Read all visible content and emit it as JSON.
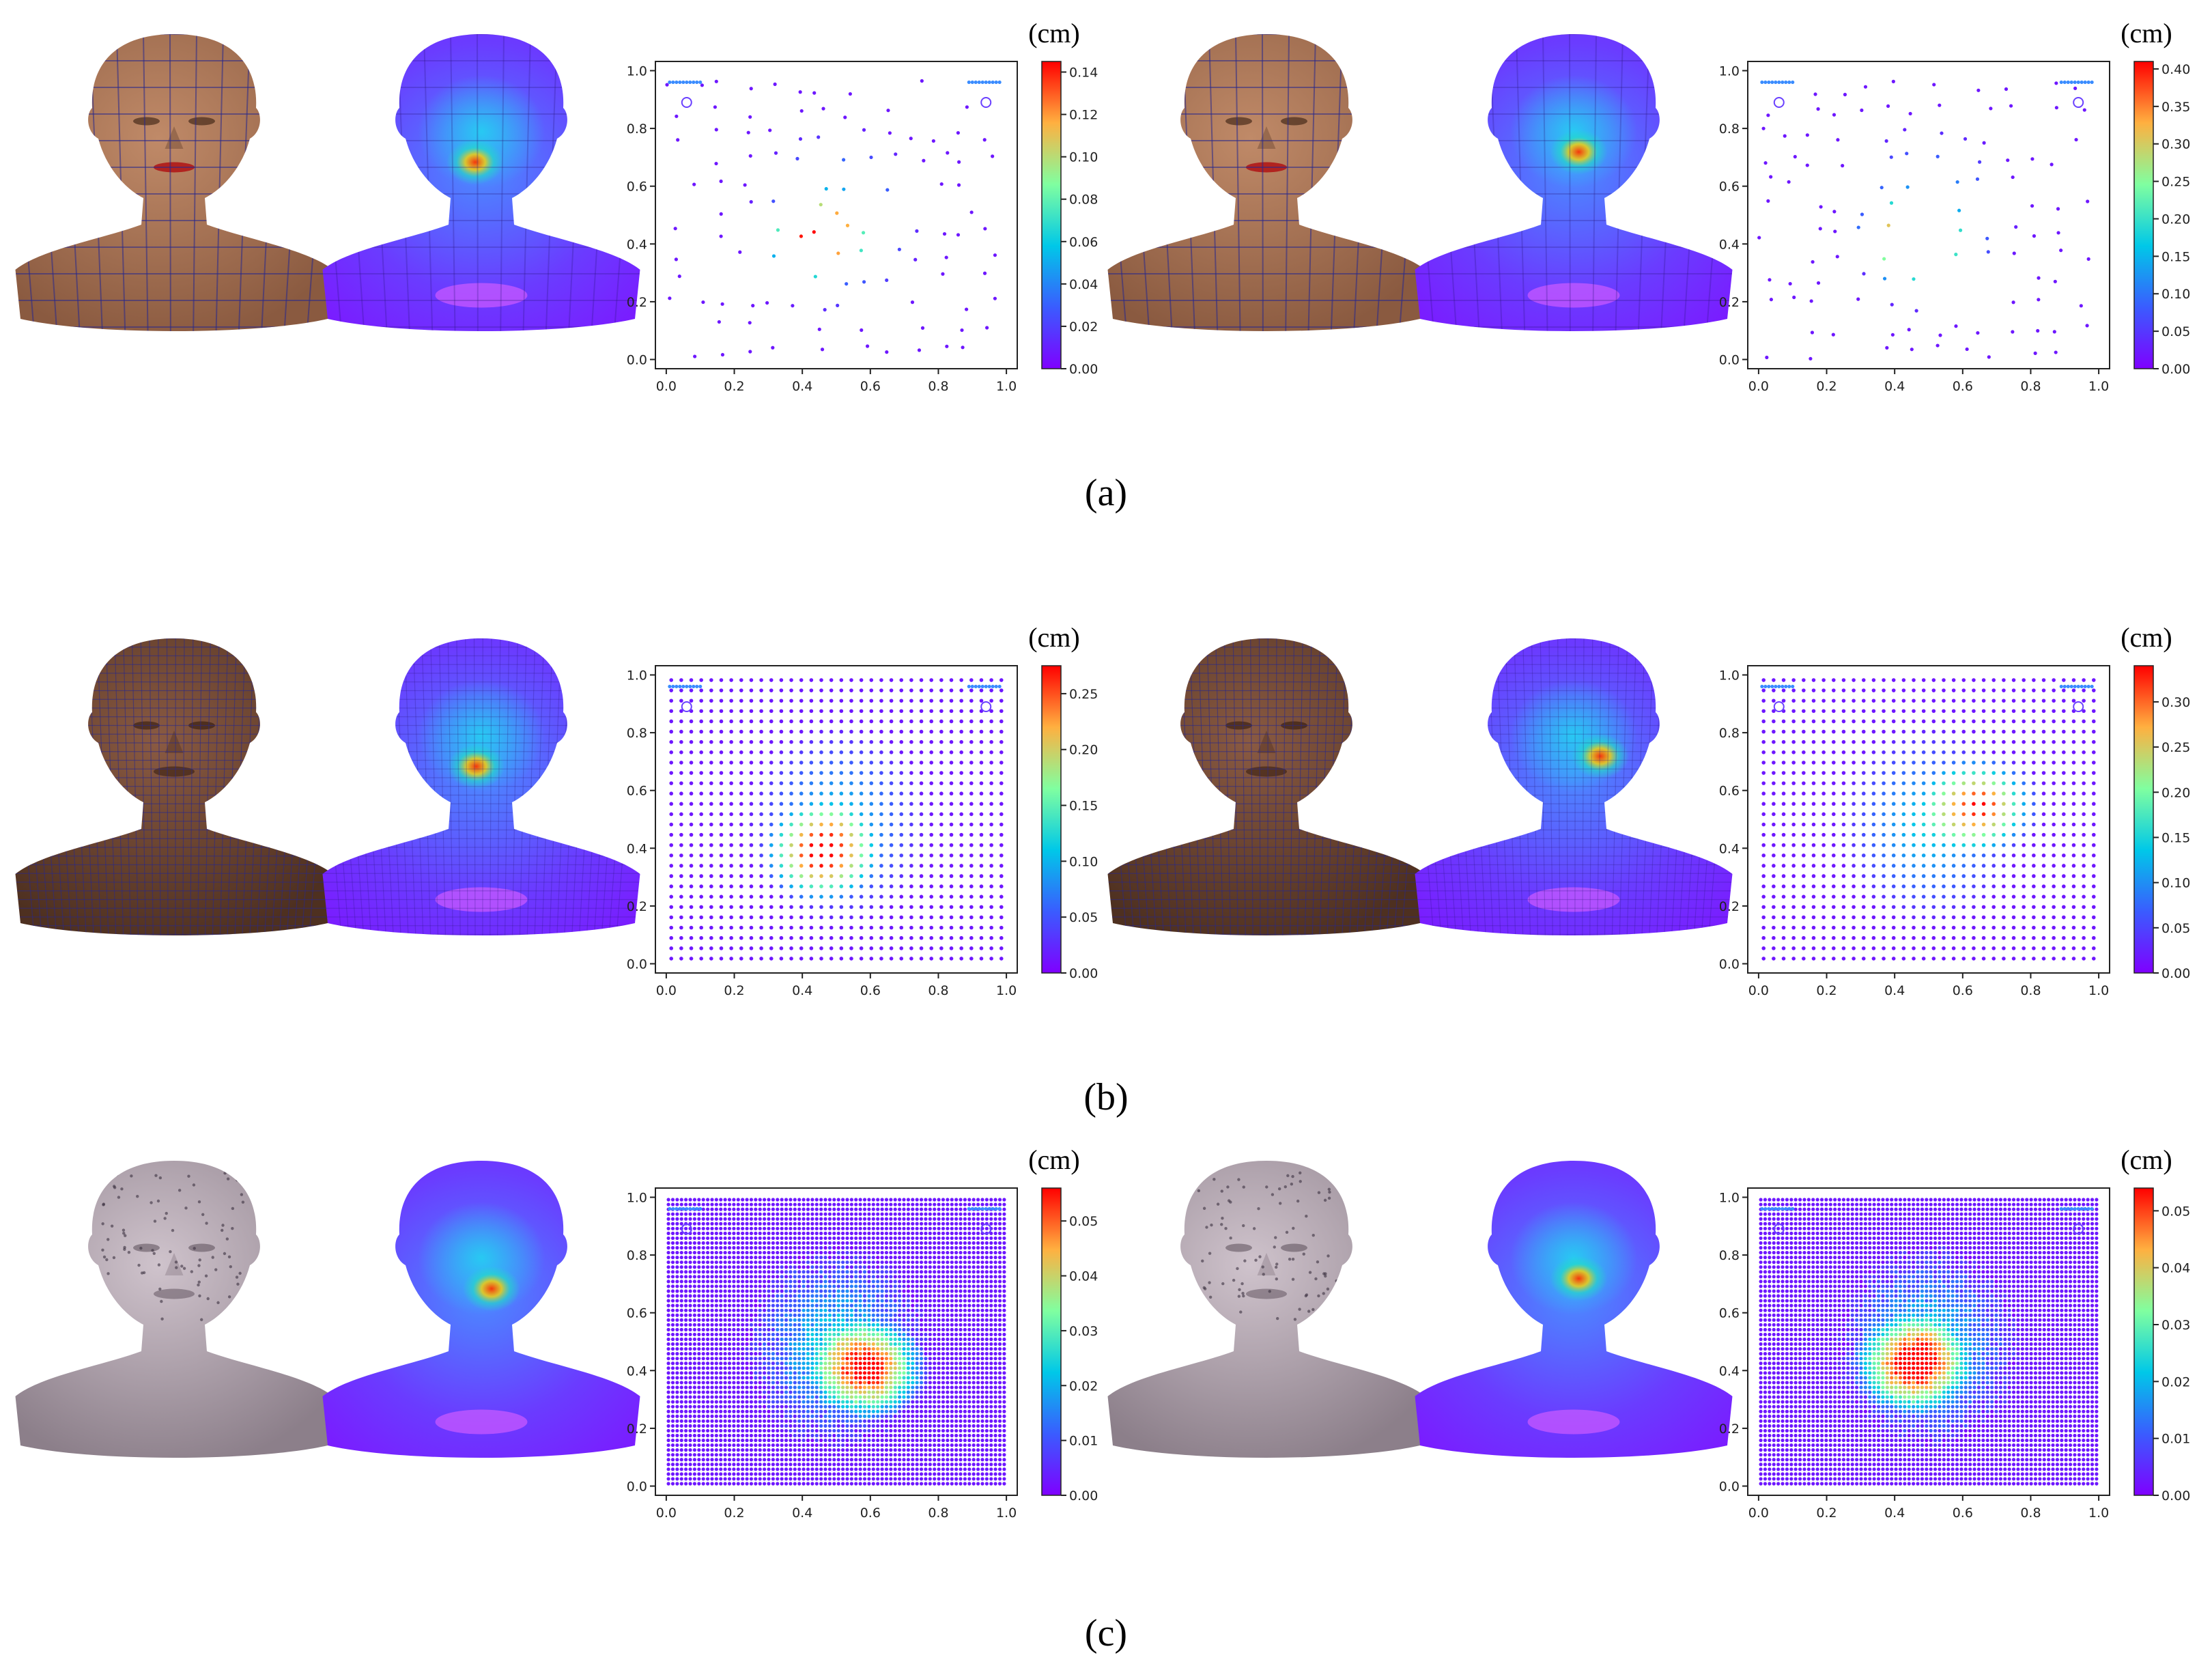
{
  "figure": {
    "rows": [
      {
        "caption": "(a)",
        "mesh_style": "low",
        "panels": [
          {
            "unit": "(cm)",
            "cbar_ticks": [
              "0.00",
              "0.02",
              "0.04",
              "0.06",
              "0.08",
              "0.10",
              "0.12",
              "0.14"
            ],
            "cbar_max": 0.145,
            "hotspot": [
              0.44,
              0.42
            ]
          },
          {
            "unit": "(cm)",
            "cbar_ticks": [
              "0.00",
              "0.05",
              "0.10",
              "0.15",
              "0.20",
              "0.25",
              "0.30",
              "0.35",
              "0.40"
            ],
            "cbar_max": 0.41,
            "hotspot": [
              0.45,
              0.41
            ]
          }
        ]
      },
      {
        "caption": "(b)",
        "mesh_style": "mid",
        "panels": [
          {
            "unit": "(cm)",
            "cbar_ticks": [
              "0.00",
              "0.05",
              "0.10",
              "0.15",
              "0.20",
              "0.25"
            ],
            "cbar_max": 0.275,
            "hotspot": [
              0.45,
              0.38
            ]
          },
          {
            "unit": "(cm)",
            "cbar_ticks": [
              "0.00",
              "0.05",
              "0.10",
              "0.15",
              "0.20",
              "0.25",
              "0.30"
            ],
            "cbar_max": 0.34,
            "hotspot": [
              0.66,
              0.55
            ]
          }
        ]
      },
      {
        "caption": "(c)",
        "mesh_style": "dense",
        "panels": [
          {
            "unit": "(cm)",
            "cbar_ticks": [
              "0.00",
              "0.01",
              "0.02",
              "0.03",
              "0.04",
              "0.05"
            ],
            "cbar_max": 0.056,
            "hotspot": [
              0.6,
              0.4
            ]
          },
          {
            "unit": "(cm)",
            "cbar_ticks": [
              "0.00",
              "0.01",
              "0.02",
              "0.03",
              "0.04",
              "0.05"
            ],
            "cbar_max": 0.054,
            "hotspot": [
              0.45,
              0.42
            ]
          }
        ]
      }
    ],
    "axis_ticks": [
      "0.0",
      "0.2",
      "0.4",
      "0.6",
      "0.8",
      "1.0"
    ],
    "colors": {
      "skin_a": "#a8775a",
      "skin_b": "#6e4632",
      "skin_c": "#b7aab5",
      "wire": "#3a3a8a",
      "heat_low": "#7a2cff",
      "heat_high": "#ff2a00"
    }
  }
}
